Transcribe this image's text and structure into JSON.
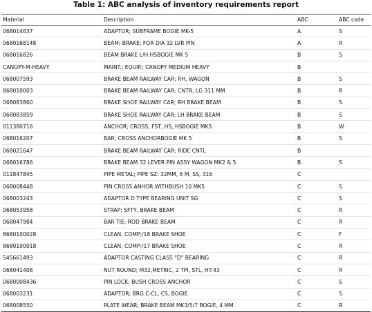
{
  "title": "Table 1: ABC analysis of inventory requirements report",
  "table": {
    "header": [
      "Material",
      "Description",
      "ABC",
      "ABC code"
    ],
    "rows": [
      [
        "068014637",
        "ADAPTOR; SUBFRAME BOGIE MK-5",
        "A",
        "S"
      ],
      [
        "0680168148",
        "BEAM; BRAKE; FOR DIA 32 LVR PIN",
        "A",
        "R"
      ],
      [
        "068016826",
        "BEAM BRAKE L/H HSBOGIE MK 5",
        "B",
        "S"
      ],
      [
        "CANOPY-M-HEAVY",
        "MAINT.; EQUIP.; CANOPY MEDIUM HEAVY",
        "B",
        null
      ],
      [
        "068007593",
        "BRAKE BEAM RAILWAY CAR; RH, WAGON",
        "B",
        "S"
      ],
      [
        "868010003",
        "BRAKE BEAM RAILWAY CAR; CNTR, LG 311 MM",
        "B",
        "R"
      ],
      [
        "068083860",
        "BRAKE SHOE RAILWAY CAR; RH BRAKE BEAM",
        "B",
        "S"
      ],
      [
        "068083859",
        "BRAKE SHOE RAILWAY CAR; LH BRAKE BEAM",
        "B",
        "S"
      ],
      [
        "011380716",
        "ANCHOR; CROSS, FST, HS, HSBOGIE MK5",
        "B",
        "W"
      ],
      [
        "068016207",
        "BAR; CROSS ANCHORBOGIE MK 5",
        "B",
        "S"
      ],
      [
        "068021647",
        "BRAKE BEAM RAILWAY CAR; RIDE CNTL",
        "B",
        null
      ],
      [
        "068016786",
        "BRAKE BEAM 32 LEVER PIN ASSY WAGON MK2 & 5",
        "B",
        "S"
      ],
      [
        "011847845",
        "PIPE METAL; PIPE SZ: 32MM, 6 M, SS, 316",
        "C",
        null
      ],
      [
        "068008448",
        "PIN CROSS ANHOR WITHBUSH 10 MK5",
        "C",
        "S"
      ],
      [
        "068003243",
        "ADAPTOR D TYPE BEARING UNIT SG",
        "C",
        "S"
      ],
      [
        "068053958",
        "STRAP; SFTY, BRAKE BEAM",
        "C",
        "R"
      ],
      [
        "068047984",
        "BAR TIE; ROD BRAKE BEAM",
        "C",
        "R"
      ],
      [
        "8680100028",
        "CLEAN, COMP;/18 BRAKE SHOE",
        "C",
        "F"
      ],
      [
        "8680100018",
        "CLEAN, COMP;/17 BRAKE SHOE",
        "C",
        "R"
      ],
      [
        "545661493",
        "ADAPTOR CASTING CLASS “D” BEARING",
        "C",
        "R"
      ],
      [
        "068041408",
        "NUT ROUND; M32,METRIC, 2 TPI, STL, HT:43",
        "C",
        "R"
      ],
      [
        "0680008436",
        "PIN LOCK; BUSH CROSS ANCHOR",
        "C",
        "S"
      ],
      [
        "068003231",
        "ADAPTOR; BRG C-CL, CS, BOGIE",
        "C",
        "S"
      ],
      [
        "068008550",
        "PLATE WEAR; BRAKE BEAM MK3/5/7 BOGIE, 4 MM",
        "C",
        "R"
      ]
    ]
  }
}
